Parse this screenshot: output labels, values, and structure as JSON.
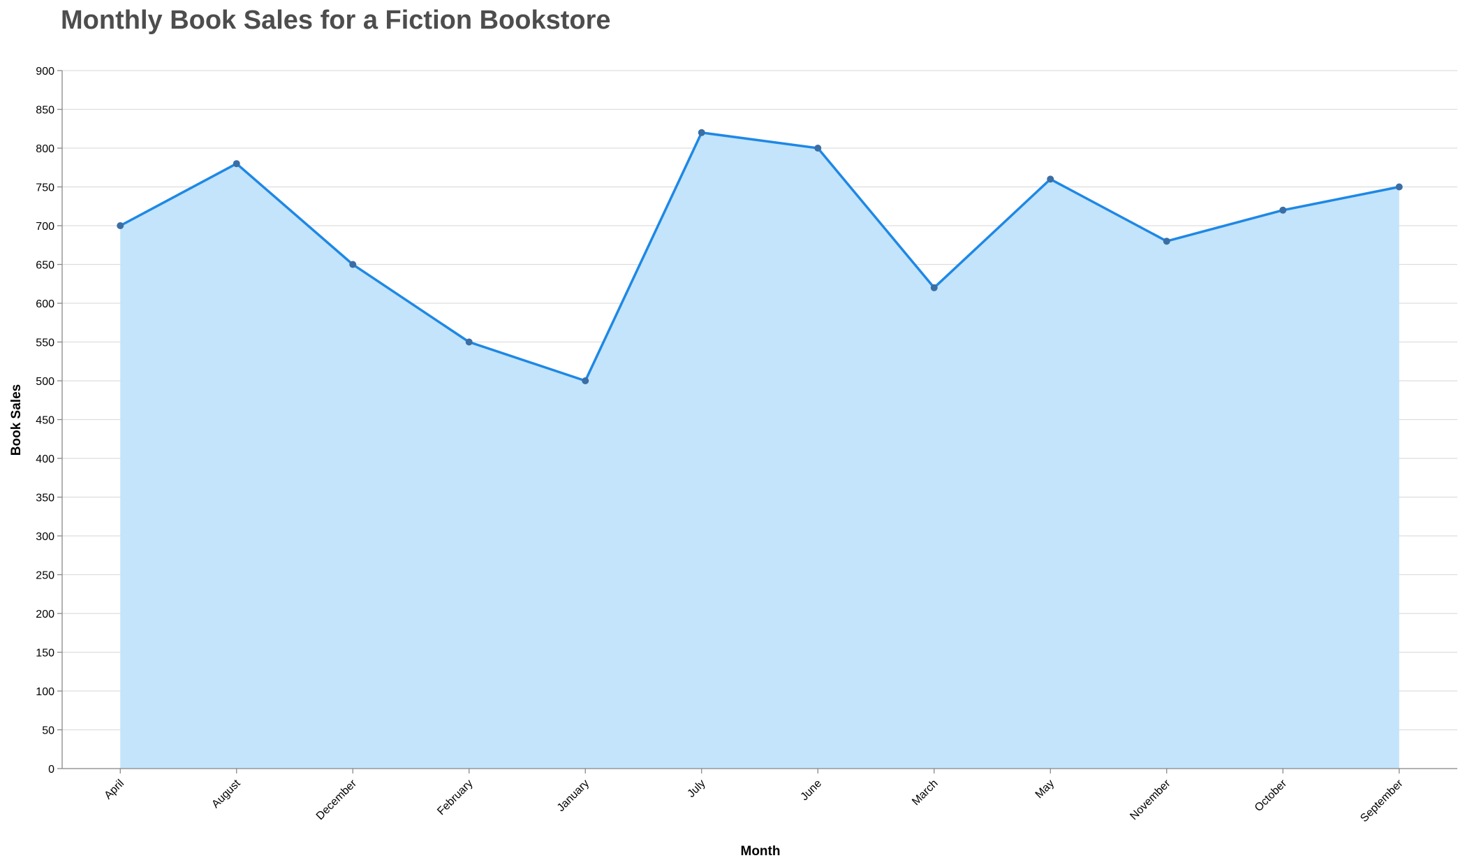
{
  "chart_data": {
    "type": "area",
    "title": "Monthly Book Sales for a Fiction Bookstore",
    "xlabel": "Month",
    "ylabel": "Book Sales",
    "categories": [
      "April",
      "August",
      "December",
      "February",
      "January",
      "July",
      "June",
      "March",
      "May",
      "November",
      "October",
      "September"
    ],
    "values": [
      700,
      780,
      650,
      550,
      500,
      820,
      800,
      620,
      760,
      680,
      720,
      750
    ],
    "ylim": [
      0,
      900
    ],
    "yticks": [
      0,
      50,
      100,
      150,
      200,
      250,
      300,
      350,
      400,
      450,
      500,
      550,
      600,
      650,
      700,
      750,
      800,
      850,
      900
    ],
    "grid": true,
    "colors": {
      "line": "#1e88e5",
      "area": "#c3e4fa",
      "point": "#3a6ea5"
    }
  }
}
